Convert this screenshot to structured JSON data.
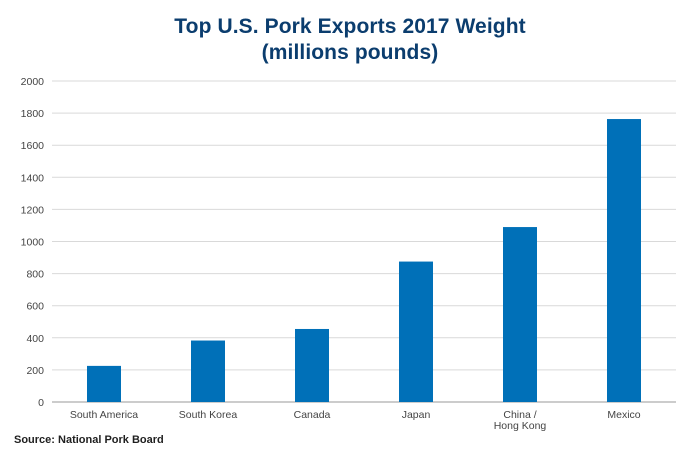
{
  "chart_data": {
    "type": "bar",
    "title_lines": [
      "Top U.S. Pork Exports 2017 Weight",
      "(millions pounds)"
    ],
    "categories": [
      [
        "South America"
      ],
      [
        "South  Korea"
      ],
      [
        "Canada"
      ],
      [
        "Japan"
      ],
      [
        "China /",
        "Hong Kong"
      ],
      [
        "Mexico"
      ]
    ],
    "values": [
      225,
      383,
      455,
      875,
      1090,
      1763
    ],
    "ylim": [
      0,
      2000
    ],
    "yticks": [
      0,
      200,
      400,
      600,
      800,
      1000,
      1200,
      1400,
      1600,
      1800,
      2000
    ],
    "xlabel": "",
    "ylabel": "",
    "grid": true,
    "bar_color": "#0070b8"
  },
  "source": "Source: National Pork Board"
}
